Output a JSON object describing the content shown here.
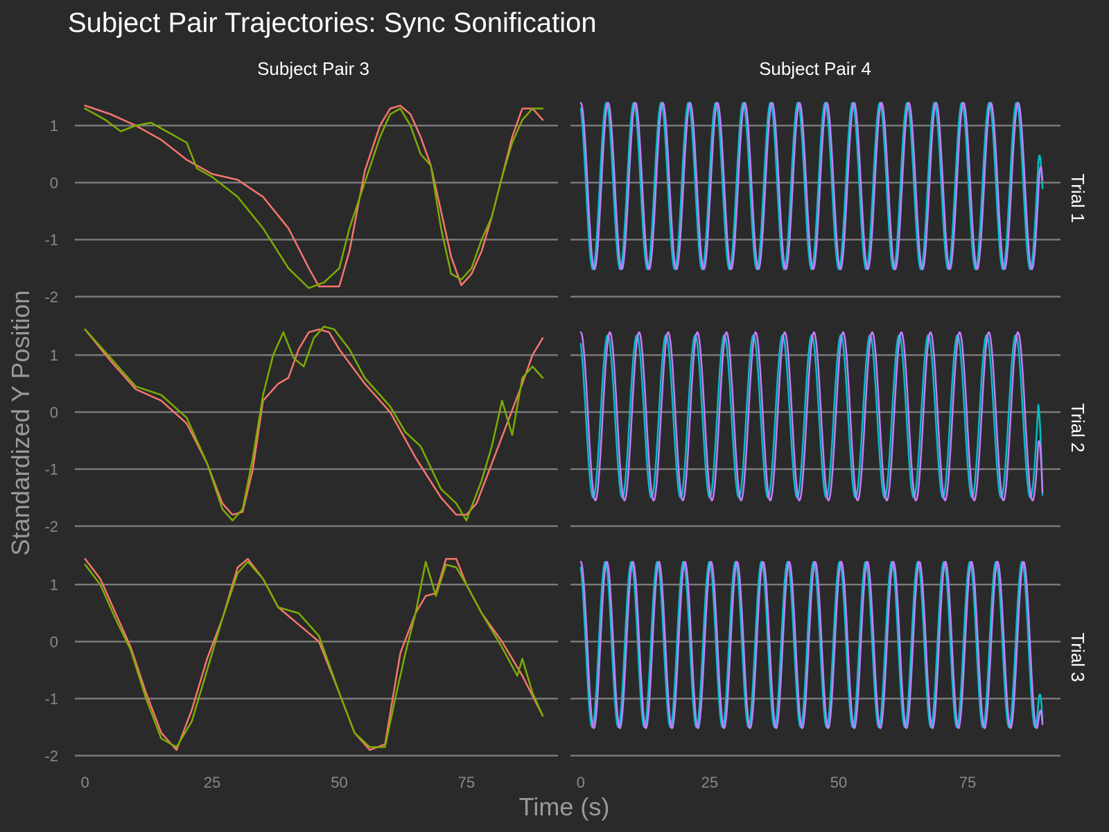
{
  "chart_data": {
    "type": "line",
    "title": "Subject Pair Trajectories: Sync Sonification",
    "xlabel": "Time (s)",
    "ylabel": "Standardized Y Position",
    "xlim": [
      -2,
      93
    ],
    "ylim": [
      -2.05,
      1.5
    ],
    "xticks": [
      0,
      25,
      50,
      75
    ],
    "yticks": [
      -2,
      -1,
      0,
      1
    ],
    "grid": "horizontal-only",
    "legend": "none",
    "columns": [
      "Subject Pair 3",
      "Subject Pair 4"
    ],
    "rows": [
      "Trial 1",
      "Trial 2",
      "Trial 3"
    ],
    "colors": {
      "pair3_a": "#f8766d",
      "pair3_b": "#7cae00",
      "pair4_a": "#00bfc4",
      "pair4_b": "#c77cff",
      "background": "#2a2a2a",
      "grid": "#7a7a7a"
    },
    "panels": [
      {
        "row": "Trial 1",
        "column": "Subject Pair 3",
        "series": [
          {
            "color": "#f8766d",
            "x": [
              0,
              5,
              10,
              15,
              20,
              25,
              30,
              35,
              40,
              44,
              46,
              48,
              50,
              52,
              55,
              58,
              60,
              62,
              64,
              66,
              68,
              70,
              72,
              74,
              76,
              78,
              80,
              82,
              84,
              86,
              88,
              90
            ],
            "y": [
              1.35,
              1.2,
              1.0,
              0.75,
              0.4,
              0.15,
              0.05,
              -0.25,
              -0.8,
              -1.5,
              -1.82,
              -1.82,
              -1.82,
              -1.2,
              0.2,
              1.0,
              1.3,
              1.35,
              1.2,
              0.8,
              0.3,
              -0.5,
              -1.3,
              -1.8,
              -1.6,
              -1.2,
              -0.6,
              0.1,
              0.8,
              1.3,
              1.3,
              1.1
            ]
          },
          {
            "color": "#7cae00",
            "x": [
              0,
              4,
              7,
              10,
              13,
              16,
              20,
              22,
              25,
              30,
              35,
              40,
              44,
              47,
              50,
              52,
              55,
              58,
              60,
              62,
              64,
              66,
              68,
              70,
              72,
              74,
              76,
              78,
              80,
              82,
              84,
              86,
              88,
              90
            ],
            "y": [
              1.3,
              1.1,
              0.9,
              1.0,
              1.05,
              0.9,
              0.7,
              0.25,
              0.1,
              -0.25,
              -0.8,
              -1.5,
              -1.85,
              -1.75,
              -1.5,
              -0.8,
              0.0,
              0.8,
              1.2,
              1.3,
              1.0,
              0.5,
              0.3,
              -0.8,
              -1.6,
              -1.7,
              -1.5,
              -1.0,
              -0.6,
              0.1,
              0.7,
              1.1,
              1.3,
              1.3
            ]
          }
        ]
      },
      {
        "row": "Trial 1",
        "column": "Subject Pair 4",
        "series": [
          {
            "color": "#00bfc4",
            "wave": {
              "x0": 0,
              "x1": 89.5,
              "start": 1.3,
              "period": 5.3,
              "max": 1.4,
              "min": -1.52,
              "end": -0.1
            }
          },
          {
            "color": "#c77cff",
            "wave": {
              "x0": 0,
              "x1": 89.5,
              "start": 1.4,
              "period": 5.3,
              "max": 1.4,
              "min": -1.52,
              "end": 0.05
            }
          }
        ]
      },
      {
        "row": "Trial 2",
        "column": "Subject Pair 3",
        "series": [
          {
            "color": "#f8766d",
            "x": [
              0,
              5,
              10,
              15,
              20,
              24,
              27,
              29,
              31,
              33,
              35,
              38,
              40,
              42,
              44,
              46,
              48,
              50,
              55,
              60,
              65,
              70,
              73,
              75,
              77,
              80,
              83,
              86,
              88,
              90
            ],
            "y": [
              1.45,
              0.9,
              0.4,
              0.2,
              -0.2,
              -0.9,
              -1.6,
              -1.8,
              -1.75,
              -1.0,
              0.2,
              0.5,
              0.6,
              1.1,
              1.4,
              1.45,
              1.4,
              1.1,
              0.5,
              0.0,
              -0.8,
              -1.5,
              -1.8,
              -1.8,
              -1.6,
              -0.9,
              -0.2,
              0.5,
              1.0,
              1.3
            ]
          },
          {
            "color": "#7cae00",
            "x": [
              0,
              5,
              10,
              15,
              20,
              24,
              27,
              29,
              31,
              33,
              35,
              37,
              39,
              41,
              43,
              45,
              47,
              49,
              52,
              55,
              60,
              63,
              66,
              70,
              73,
              75,
              78,
              80,
              82,
              84,
              86,
              88,
              90
            ],
            "y": [
              1.45,
              0.95,
              0.45,
              0.3,
              -0.1,
              -0.9,
              -1.7,
              -1.9,
              -1.7,
              -0.8,
              0.3,
              1.0,
              1.4,
              0.95,
              0.8,
              1.3,
              1.5,
              1.45,
              1.1,
              0.6,
              0.1,
              -0.35,
              -0.6,
              -1.35,
              -1.6,
              -1.9,
              -1.2,
              -0.6,
              0.2,
              -0.4,
              0.6,
              0.8,
              0.6
            ]
          }
        ]
      },
      {
        "row": "Trial 2",
        "column": "Subject Pair 4",
        "series": [
          {
            "color": "#00bfc4",
            "wave": {
              "x0": 0,
              "x1": 89.5,
              "start": 1.2,
              "period": 5.65,
              "max": 1.35,
              "min": -1.5,
              "end": -1.45
            }
          },
          {
            "color": "#c77cff",
            "wave": {
              "x0": 0,
              "x1": 89.5,
              "start": 1.45,
              "period": 5.65,
              "max": 1.4,
              "min": -1.55,
              "end": -1.4
            }
          }
        ]
      },
      {
        "row": "Trial 3",
        "column": "Subject Pair 3",
        "series": [
          {
            "color": "#f8766d",
            "x": [
              0,
              3,
              6,
              9,
              12,
              15,
              18,
              21,
              24,
              27,
              30,
              32,
              35,
              38,
              42,
              46,
              50,
              53,
              56,
              59,
              62,
              65,
              67,
              69,
              71,
              73,
              75,
              78,
              82,
              86,
              90
            ],
            "y": [
              1.45,
              1.1,
              0.5,
              -0.1,
              -0.9,
              -1.6,
              -1.9,
              -1.2,
              -0.3,
              0.4,
              1.3,
              1.45,
              1.1,
              0.6,
              0.3,
              0.0,
              -0.9,
              -1.6,
              -1.9,
              -1.8,
              -0.2,
              0.5,
              0.8,
              0.85,
              1.45,
              1.45,
              1.0,
              0.5,
              0.0,
              -0.6,
              -1.3
            ]
          },
          {
            "color": "#7cae00",
            "x": [
              0,
              3,
              6,
              9,
              12,
              15,
              18,
              21,
              24,
              27,
              30,
              32,
              35,
              38,
              42,
              46,
              50,
              53,
              56,
              59,
              61,
              63,
              65,
              67,
              69,
              71,
              73,
              75,
              78,
              82,
              85,
              86,
              88,
              90
            ],
            "y": [
              1.35,
              1.0,
              0.4,
              -0.15,
              -1.0,
              -1.7,
              -1.85,
              -1.4,
              -0.5,
              0.4,
              1.2,
              1.4,
              1.1,
              0.6,
              0.5,
              0.1,
              -0.9,
              -1.6,
              -1.85,
              -1.85,
              -1.0,
              -0.2,
              0.5,
              1.4,
              0.8,
              1.35,
              1.3,
              1.0,
              0.5,
              -0.1,
              -0.6,
              -0.3,
              -0.9,
              -1.3
            ]
          }
        ]
      },
      {
        "row": "Trial 3",
        "column": "Subject Pair 4",
        "series": [
          {
            "color": "#00bfc4",
            "wave": {
              "x0": 0,
              "x1": 89.5,
              "start": 1.3,
              "period": 5.05,
              "max": 1.4,
              "min": -1.5,
              "end": -1.4
            }
          },
          {
            "color": "#c77cff",
            "wave": {
              "x0": 0,
              "x1": 89.5,
              "start": 1.4,
              "period": 5.05,
              "max": 1.4,
              "min": -1.52,
              "end": -1.45
            }
          }
        ]
      }
    ]
  }
}
